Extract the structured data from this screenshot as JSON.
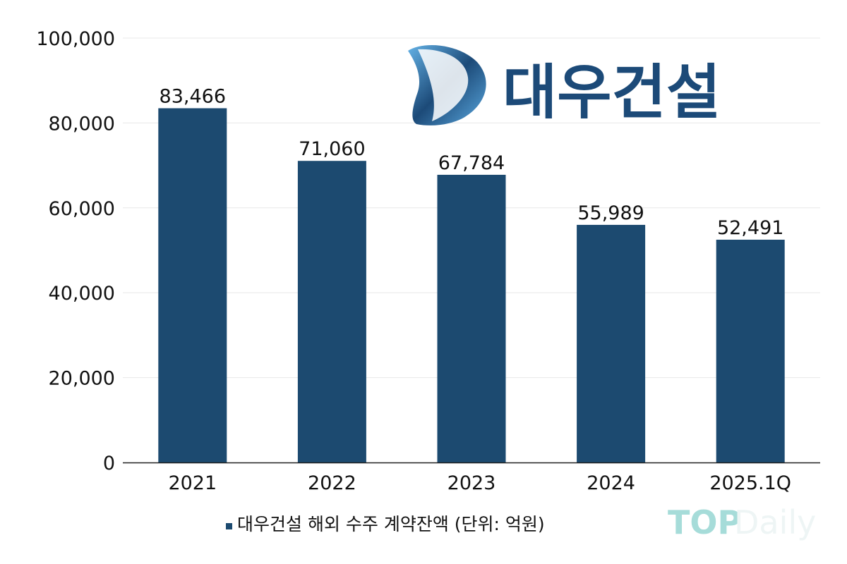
{
  "chart_data": {
    "type": "bar",
    "categories": [
      "2021",
      "2022",
      "2023",
      "2024",
      "2025.1Q"
    ],
    "series": [
      {
        "name": "대우건설 해외 수주 계약잔액 (단위: 억원)",
        "values": [
          83466,
          71060,
          67784,
          55989,
          52491
        ],
        "color": "#1c4a70"
      }
    ],
    "data_labels": [
      "83,466",
      "71,060",
      "67,784",
      "55,989",
      "52,491"
    ],
    "yticks": [
      "0",
      "20,000",
      "40,000",
      "60,000",
      "80,000",
      "100,000"
    ],
    "ytick_values": [
      0,
      20000,
      40000,
      60000,
      80000,
      100000
    ],
    "ylim": [
      0,
      100000
    ],
    "grid": true,
    "legend_position": "bottom",
    "title": "",
    "xlabel": "",
    "ylabel": ""
  },
  "logo": {
    "text": "대우건설",
    "color": "#1c4a78"
  },
  "watermark": {
    "text_bold": "TOP",
    "text_light": "Daily"
  }
}
